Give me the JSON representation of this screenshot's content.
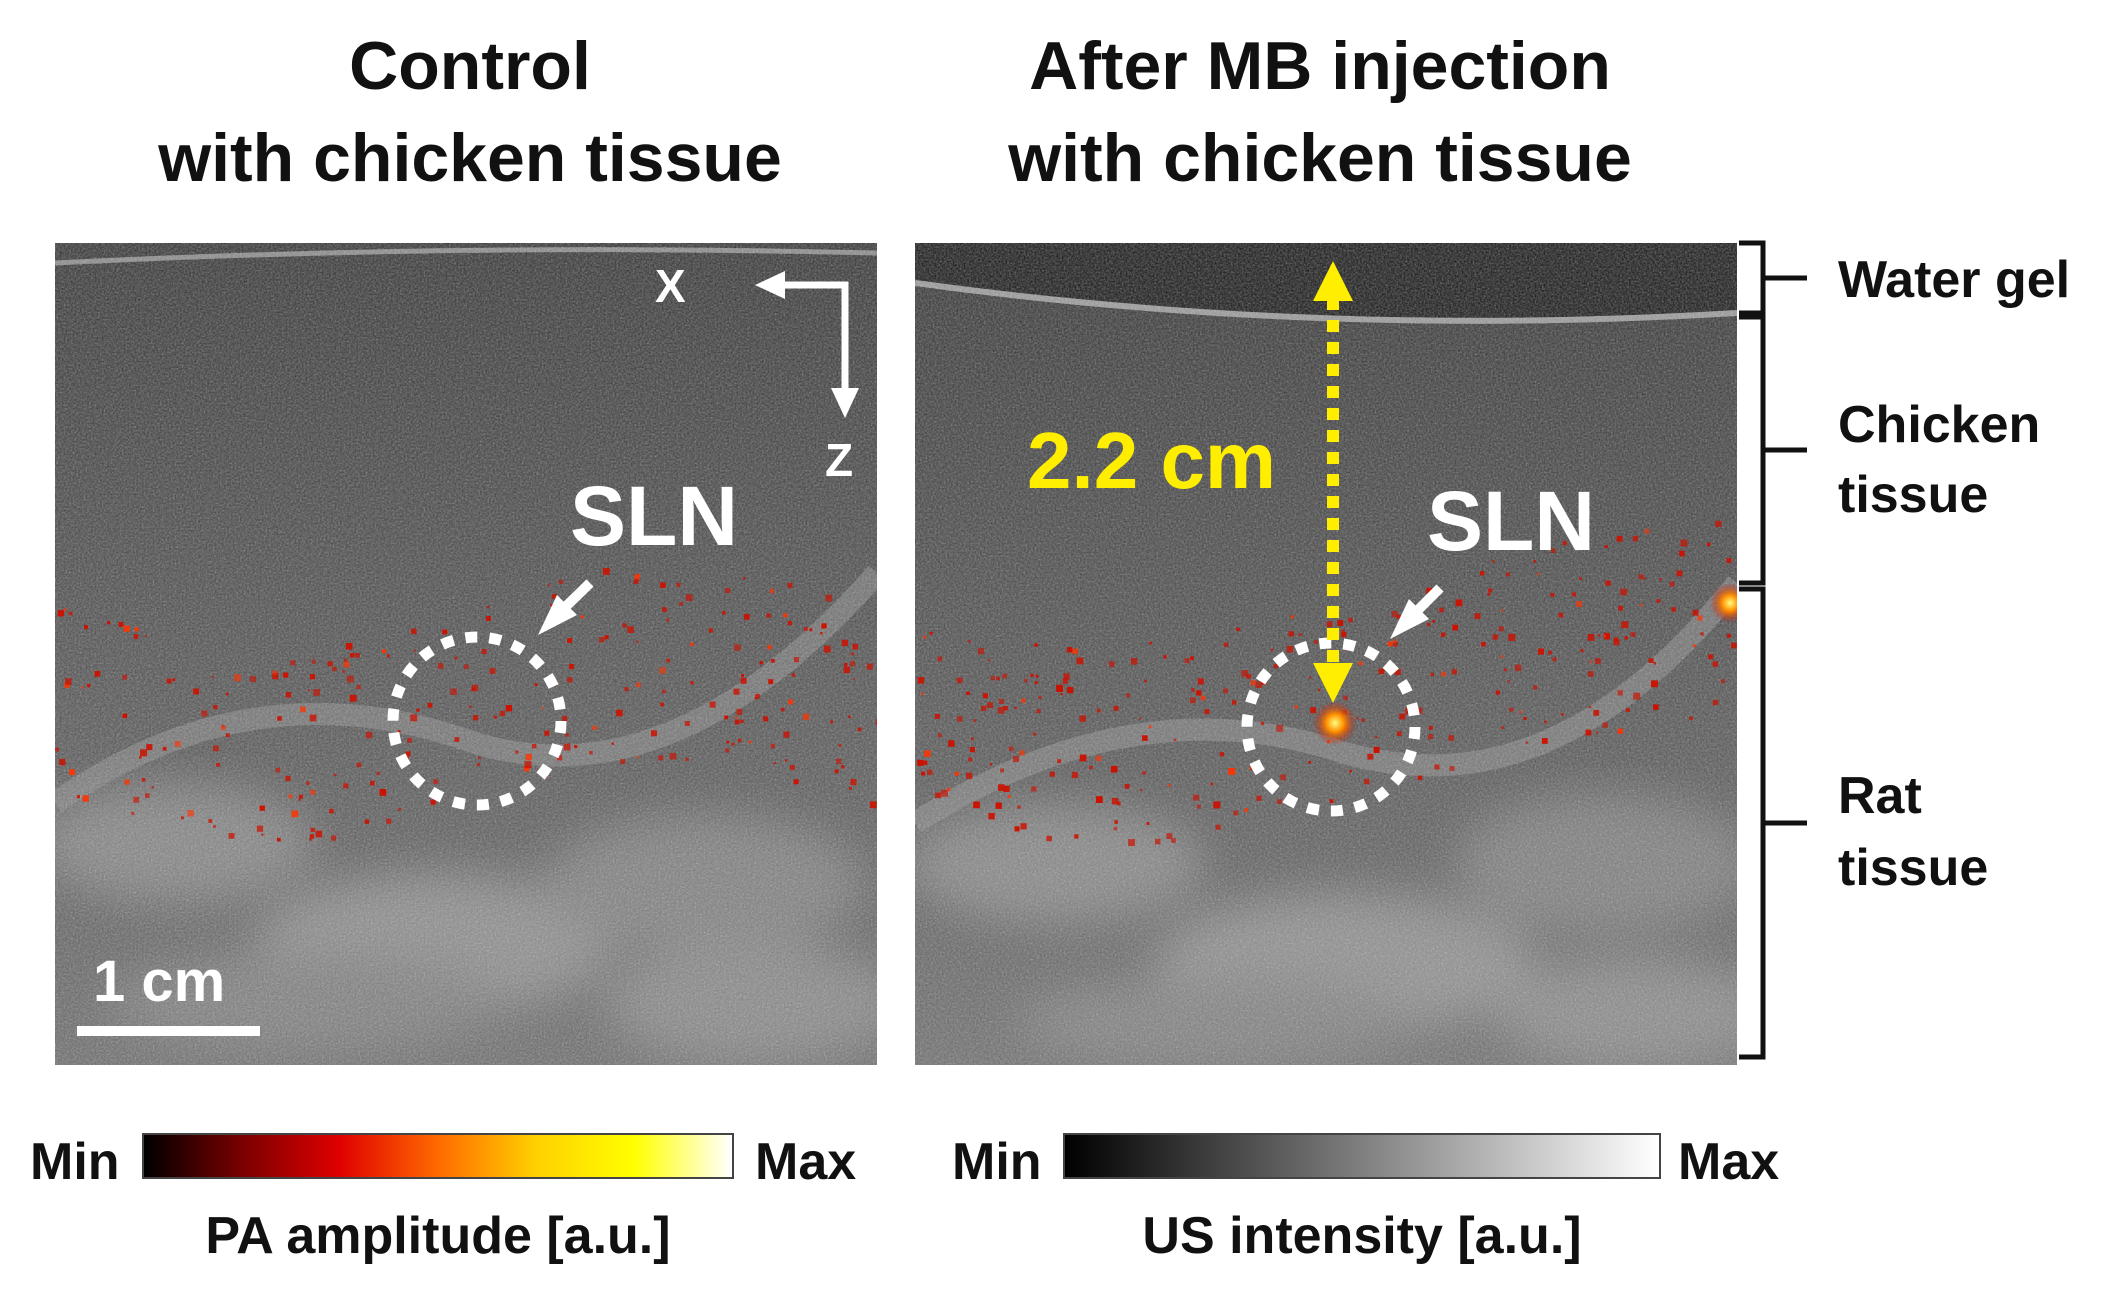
{
  "panels": [
    {
      "title_line1": "Control",
      "title_line2": "with chicken tissue",
      "sln_label": "SLN",
      "axis_x": "X",
      "axis_z": "Z",
      "scale_bar": "1 cm"
    },
    {
      "title_line1": "After MB injection",
      "title_line2": "with chicken tissue",
      "sln_label": "SLN",
      "depth_label": "2.2 cm"
    }
  ],
  "layers": {
    "water_gel": "Water gel",
    "chicken_line1": "Chicken",
    "chicken_line2": "tissue",
    "rat_line1": "Rat",
    "rat_line2": "tissue"
  },
  "colorbars": [
    {
      "min": "Min",
      "max": "Max",
      "label": "PA amplitude [a.u.]",
      "colors": [
        "#000000",
        "#7a0000",
        "#e00000",
        "#ff6a00",
        "#ffd000",
        "#ffff00",
        "#ffffff"
      ]
    },
    {
      "min": "Min",
      "max": "Max",
      "label": "US intensity [a.u.]",
      "colors": [
        "#000000",
        "#ffffff"
      ]
    }
  ],
  "colors": {
    "depth_arrow": "#ffee00",
    "pa_signal": "#cc1100",
    "annotation": "#ffffff"
  }
}
